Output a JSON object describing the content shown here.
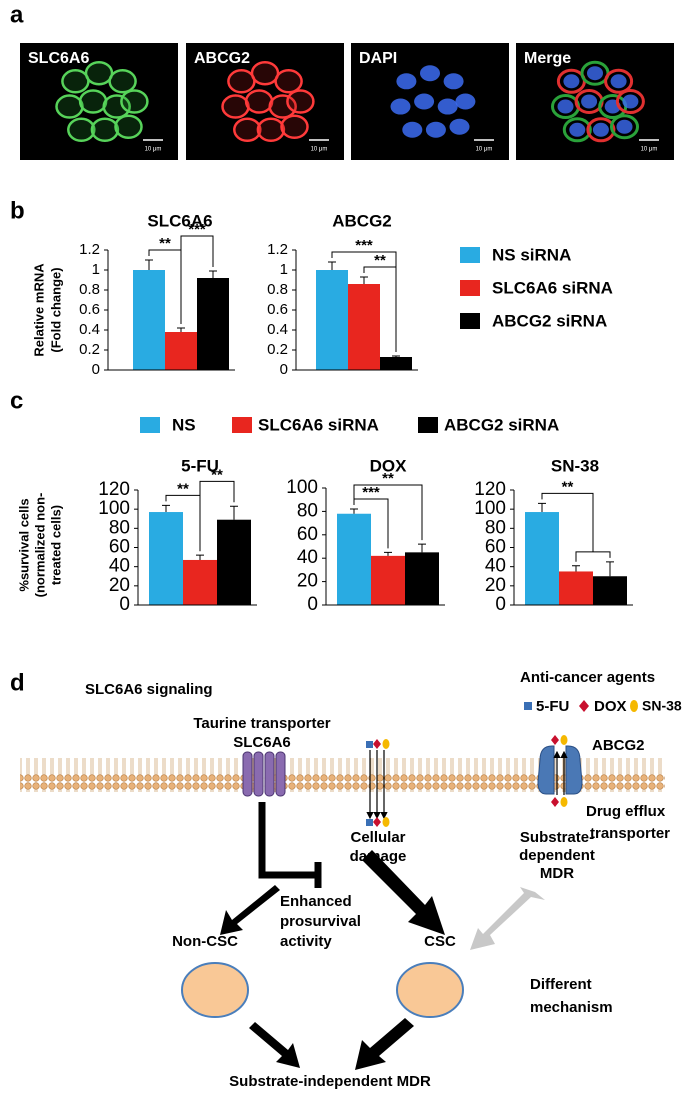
{
  "panel_labels": [
    "a",
    "b",
    "c",
    "d"
  ],
  "panel_a": {
    "scale_label": "10 μm",
    "images": [
      {
        "label": "SLC6A6"
      },
      {
        "label": "ABCG2"
      },
      {
        "label": "DAPI"
      },
      {
        "label": "Merge"
      }
    ]
  },
  "legends": [
    {
      "items": [
        {
          "name": "NS siRNA",
          "color": "#29abe2"
        },
        {
          "name": "SLC6A6 siRNA",
          "color": "#e8261f"
        },
        {
          "name": "ABCG2 siRNA",
          "color": "#000000"
        }
      ]
    },
    {
      "items": [
        {
          "name": "NS",
          "color": "#29abe2"
        },
        {
          "name": "SLC6A6 siRNA",
          "color": "#e8261f"
        },
        {
          "name": "ABCG2 siRNA",
          "color": "#000000"
        }
      ]
    }
  ],
  "y_labels": [
    [
      "Relative  mRNA",
      "(Fold change)"
    ],
    [
      "%survival cells",
      "(normalized non-",
      "treated cells)"
    ]
  ],
  "chart_data": [
    {
      "type": "bar",
      "title": "SLC6A6",
      "categories": [
        null,
        null,
        null
      ],
      "values": [
        1.0,
        0.38,
        0.92
      ],
      "errors": [
        0.1,
        0.04,
        0.07
      ],
      "colors": [
        "#29abe2",
        "#e8261f",
        "#000000"
      ],
      "ylim": [
        0,
        1.2
      ],
      "yticks": [
        0,
        {
          "value": 0.2,
          "label": "0.2"
        },
        {
          "value": 0.4,
          "label": "0.4"
        },
        {
          "value": 0.6,
          "label": "0.6"
        },
        {
          "value": 0.8,
          "label": "0.8"
        },
        1,
        {
          "value": 1.2,
          "label": "1.2"
        }
      ],
      "annotations": [
        {
          "text": "**",
          "bars": [
            0,
            1
          ]
        },
        {
          "text": "***",
          "bars": [
            1,
            2
          ]
        }
      ]
    },
    {
      "type": "bar",
      "title": "ABCG2",
      "categories": [
        null,
        null,
        null
      ],
      "values": [
        1.0,
        0.86,
        0.13
      ],
      "errors": [
        0.08,
        0.07,
        0.01
      ],
      "colors": [
        "#29abe2",
        "#e8261f",
        "#000000"
      ],
      "ylim": [
        0,
        1.2
      ],
      "yticks": [
        0,
        {
          "value": 0.2,
          "label": "0.2"
        },
        {
          "value": 0.4,
          "label": "0.4"
        },
        {
          "value": 0.6,
          "label": "0.6"
        },
        {
          "value": 0.8,
          "label": "0.8"
        },
        1,
        {
          "value": 1.2,
          "label": "1.2"
        }
      ],
      "annotations": [
        {
          "text": "***",
          "bars": [
            0,
            2
          ]
        },
        {
          "text": "**",
          "bars": [
            1,
            2
          ]
        }
      ]
    },
    {
      "type": "bar",
      "title": "5-FU",
      "categories": [
        null,
        null,
        null
      ],
      "values": [
        97,
        47,
        89
      ],
      "errors": [
        7,
        5,
        14
      ],
      "colors": [
        "#29abe2",
        "#e8261f",
        "#000000"
      ],
      "ylim": [
        0,
        120
      ],
      "yticks": [
        0,
        20,
        40,
        60,
        80,
        100,
        120
      ],
      "annotations": [
        {
          "text": "**",
          "bars": [
            0,
            1
          ]
        },
        {
          "text": "**",
          "bars": [
            1,
            2
          ]
        }
      ]
    },
    {
      "type": "bar",
      "title": "DOX",
      "categories": [
        null,
        null,
        null
      ],
      "values": [
        78,
        42,
        45
      ],
      "errors": [
        4,
        3,
        7
      ],
      "colors": [
        "#29abe2",
        "#e8261f",
        "#000000"
      ],
      "ylim": [
        0,
        100
      ],
      "yticks": [
        0,
        20,
        40,
        60,
        80,
        100
      ],
      "annotations": [
        {
          "text": "***",
          "bars": [
            0,
            1
          ]
        },
        {
          "text": "**",
          "bars": [
            0,
            2
          ]
        }
      ]
    },
    {
      "type": "bar",
      "title": "SN-38",
      "categories": [
        null,
        null,
        null
      ],
      "values": [
        97,
        35,
        30
      ],
      "errors": [
        9,
        6,
        15
      ],
      "colors": [
        "#29abe2",
        "#e8261f",
        "#000000"
      ],
      "ylim": [
        0,
        120
      ],
      "yticks": [
        0,
        20,
        40,
        60,
        80,
        100,
        120
      ],
      "annotations": [
        {
          "text": "**",
          "bars": [
            0,
            1,
            2
          ]
        }
      ]
    }
  ],
  "panel_d": {
    "title": "SLC6A6 signaling",
    "agents_title": "Anti-cancer agents",
    "agents": [
      "5-FU",
      "DOX",
      "SN-38"
    ],
    "taurine": [
      "Taurine transporter",
      "SLC6A6"
    ],
    "abcg2": "ABCG2",
    "efflux": [
      "Drug efflux",
      "transporter"
    ],
    "substrate_dep": [
      "Substrate-",
      "dependent",
      "MDR"
    ],
    "damage": [
      "Cellular",
      "damage"
    ],
    "enhanced": [
      "Enhanced",
      "prosurvival",
      "activity"
    ],
    "non_csc": "Non-CSC",
    "csc": "CSC",
    "different": [
      "Different",
      "mechanism"
    ],
    "bottom": "Substrate-independent MDR"
  }
}
